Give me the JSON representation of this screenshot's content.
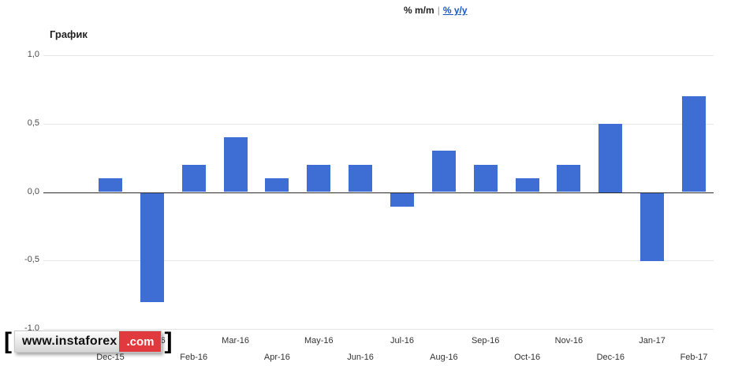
{
  "header": {
    "mm_label": "% m/m",
    "separator": "|",
    "yy_label": "% y/y"
  },
  "chart": {
    "title": "График"
  },
  "watermark": {
    "bracket_left": "[",
    "domain": "www.instaforex",
    "tld": ".com",
    "bracket_right": "]",
    "tld_bg_color": "#e03a3e"
  },
  "chart_data": {
    "type": "bar",
    "title": "График",
    "categories": [
      "Dec-15",
      "Jan-16",
      "Feb-16",
      "Mar-16",
      "Apr-16",
      "May-16",
      "Jun-16",
      "Jul-16",
      "Aug-16",
      "Sep-16",
      "Oct-16",
      "Nov-16",
      "Dec-16",
      "Jan-17",
      "Feb-17"
    ],
    "values": [
      0.1,
      -0.8,
      0.2,
      0.4,
      0.1,
      0.2,
      0.2,
      -0.1,
      0.3,
      0.2,
      0.1,
      0.2,
      0.5,
      -0.5,
      0.7
    ],
    "xlabel": "",
    "ylabel": "",
    "ylim": [
      -1.0,
      1.0
    ],
    "ytick_interval": 0.5,
    "ytick_labels": [
      "1,0",
      "0,5",
      "0,0",
      "-0,5",
      "-1,0"
    ],
    "decimal_separator": ",",
    "bar_color": "#3e6dd4",
    "grid": true,
    "legend": "none"
  }
}
